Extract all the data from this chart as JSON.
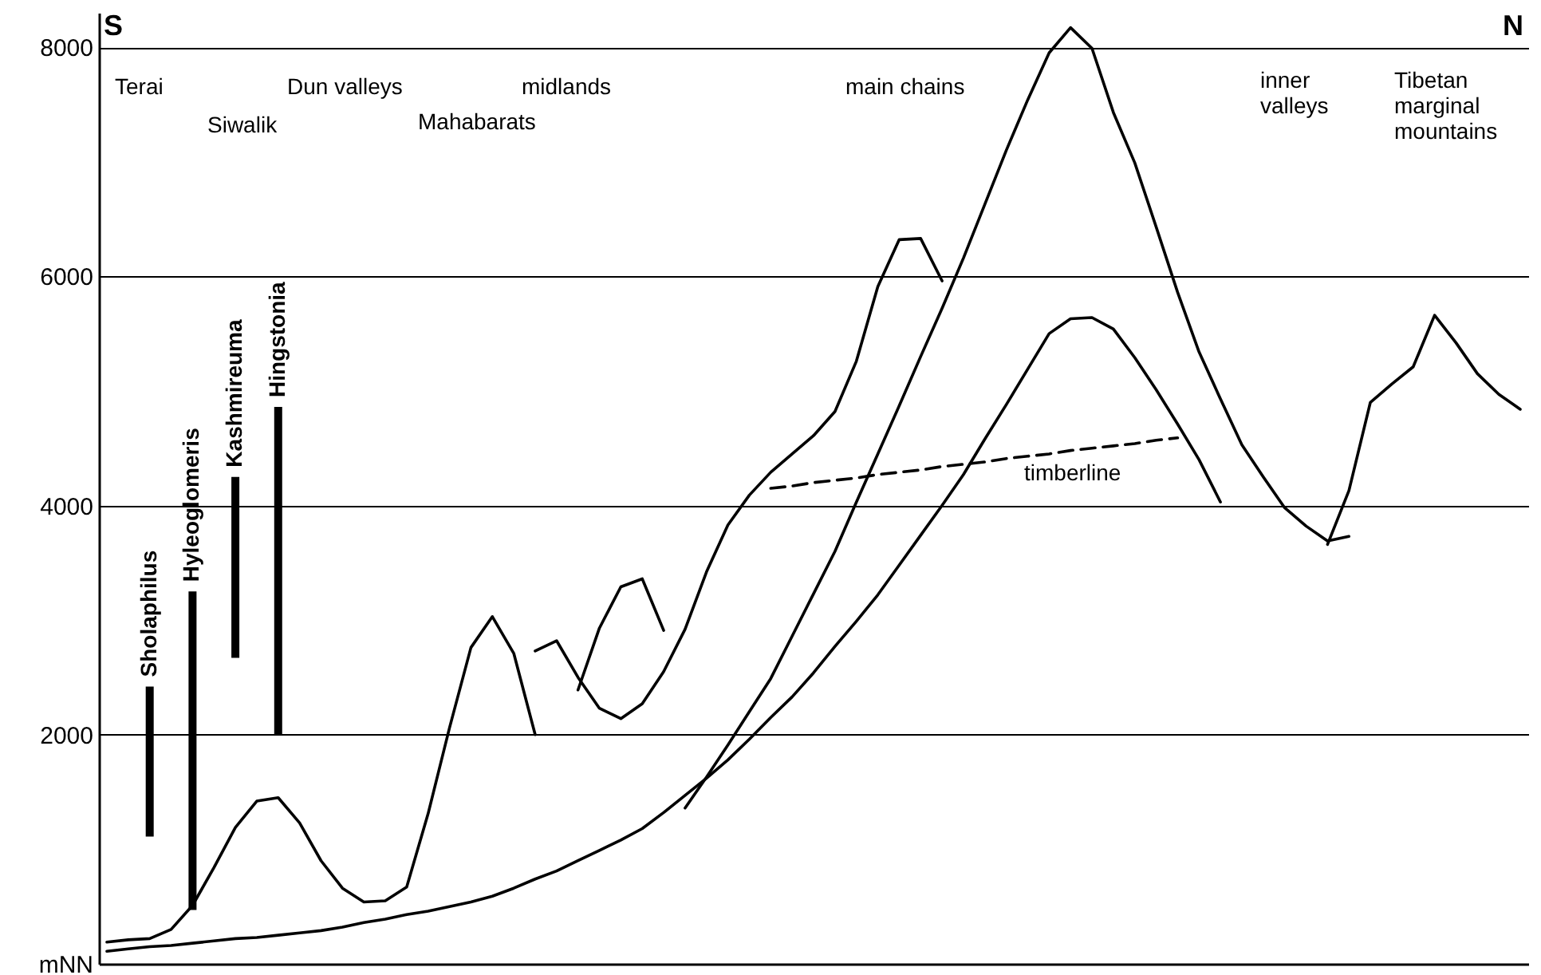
{
  "chart_data": {
    "type": "line",
    "categories": [
      null,
      null,
      null,
      null,
      null,
      null,
      null,
      null,
      null,
      null,
      null,
      null,
      null,
      null,
      null,
      null,
      null,
      null,
      null,
      null,
      null,
      null,
      null,
      null,
      null,
      null,
      null,
      null,
      null,
      null,
      null,
      null,
      null,
      null,
      null,
      null,
      null,
      null,
      null,
      null,
      null,
      null,
      null,
      null,
      null,
      null,
      null,
      null,
      null,
      null,
      null,
      null,
      null,
      null,
      null,
      null,
      null,
      null,
      null,
      null,
      null,
      null,
      null,
      null,
      null,
      null,
      null
    ],
    "ylim": [
      0,
      8300
    ],
    "yticks": [
      {
        "value": 0,
        "label": "mNN"
      },
      2000,
      4000,
      6000,
      8000
    ],
    "grid": "y",
    "tick_labels": "y",
    "series": [
      {
        "color": "#000000",
        "values": [
          110,
          130,
          150,
          160,
          180,
          200,
          220,
          230,
          250,
          270,
          290,
          320,
          360,
          390,
          430,
          460,
          500,
          540,
          590,
          660,
          740,
          810,
          900,
          990,
          1080,
          1180,
          1320,
          1470,
          1620,
          1780,
          1960,
          2150,
          2330,
          2540,
          2770,
          2990,
          3220,
          3480,
          3740,
          4000,
          4270,
          4580,
          4880,
          5190,
          5500,
          5630,
          5640,
          5540,
          5290,
          5010,
          4710,
          4400,
          4030,
          null,
          null,
          null,
          null,
          null,
          null,
          null,
          null,
          null,
          null,
          null,
          null,
          null,
          null
        ]
      },
      {
        "color": "#000000",
        "values": [
          190,
          210,
          220,
          300,
          510,
          840,
          1190,
          1420,
          1450,
          1230,
          900,
          660,
          540,
          550,
          670,
          1310,
          2060,
          2760,
          3030,
          2710,
          2000,
          null,
          null,
          null,
          null,
          null,
          null,
          null,
          null,
          null,
          null,
          null,
          null,
          null,
          null,
          null,
          null,
          null,
          null,
          null,
          null,
          null,
          null,
          null,
          null,
          null,
          null,
          null,
          null,
          null,
          null,
          null,
          null,
          null,
          null,
          null,
          null,
          null,
          null,
          null,
          null,
          null,
          null,
          null,
          null,
          null,
          null
        ]
      },
      {
        "color": "#000000",
        "values": [
          null,
          null,
          null,
          null,
          null,
          null,
          null,
          null,
          null,
          null,
          null,
          null,
          null,
          null,
          null,
          null,
          null,
          null,
          null,
          null,
          2730,
          2820,
          2500,
          2230,
          2140,
          2270,
          2550,
          2920,
          3420,
          3830,
          4090,
          4290,
          4450,
          4610,
          4820,
          5260,
          5910,
          6320,
          6330,
          5960,
          null,
          null,
          null,
          null,
          null,
          null,
          null,
          null,
          null,
          null,
          null,
          null,
          null,
          null,
          null,
          null,
          null,
          null,
          null,
          null,
          null,
          null,
          null,
          null,
          null,
          null,
          null
        ]
      },
      {
        "color": "#000000",
        "values": [
          null,
          null,
          null,
          null,
          null,
          null,
          null,
          null,
          null,
          null,
          null,
          null,
          null,
          null,
          null,
          null,
          null,
          null,
          null,
          null,
          null,
          null,
          2390,
          2930,
          3290,
          3360,
          2910,
          null,
          null,
          null,
          null,
          null,
          null,
          null,
          null,
          null,
          null,
          null,
          null,
          null,
          null,
          null,
          null,
          null,
          null,
          null,
          null,
          null,
          null,
          null,
          null,
          null,
          null,
          null,
          null,
          null,
          null,
          null,
          null,
          null,
          null,
          null,
          null,
          null,
          null,
          null,
          null
        ]
      },
      {
        "color": "#000000",
        "values": [
          null,
          null,
          null,
          null,
          null,
          null,
          null,
          null,
          null,
          null,
          null,
          null,
          null,
          null,
          null,
          null,
          null,
          null,
          null,
          null,
          null,
          null,
          null,
          null,
          null,
          null,
          null,
          1360,
          1630,
          1910,
          2200,
          2490,
          2860,
          3230,
          3600,
          4030,
          4450,
          4870,
          5300,
          5720,
          6160,
          6630,
          7100,
          7540,
          7950,
          8170,
          7990,
          7430,
          6990,
          6430,
          5860,
          5340,
          4930,
          4530,
          4250,
          3980,
          3820,
          3690,
          3730,
          null,
          null,
          null,
          null,
          null,
          null,
          null,
          null
        ]
      },
      {
        "color": "#000000",
        "values": [
          null,
          null,
          null,
          null,
          null,
          null,
          null,
          null,
          null,
          null,
          null,
          null,
          null,
          null,
          null,
          null,
          null,
          null,
          null,
          null,
          null,
          null,
          null,
          null,
          null,
          null,
          null,
          null,
          null,
          null,
          null,
          null,
          null,
          null,
          null,
          null,
          null,
          null,
          null,
          null,
          null,
          null,
          null,
          null,
          null,
          null,
          null,
          null,
          null,
          null,
          null,
          null,
          null,
          null,
          null,
          null,
          null,
          3660,
          4130,
          4900,
          5060,
          5210,
          5660,
          5420,
          5150,
          4970,
          4840
        ]
      },
      {
        "color": "#000000",
        "line_style": "dashed",
        "values": [
          null,
          null,
          null,
          null,
          null,
          null,
          null,
          null,
          null,
          null,
          null,
          null,
          null,
          null,
          null,
          null,
          null,
          null,
          null,
          null,
          null,
          null,
          null,
          null,
          null,
          null,
          null,
          null,
          null,
          null,
          null,
          4150,
          4170,
          4200,
          4220,
          4240,
          4270,
          4290,
          4310,
          4340,
          4360,
          4380,
          4410,
          4430,
          4450,
          4480,
          4500,
          4520,
          4540,
          4570,
          4590,
          null,
          null,
          null,
          null,
          null,
          null,
          null,
          null,
          null,
          null,
          null,
          null,
          null,
          null,
          null,
          null
        ]
      },
      {
        "type": "bar",
        "name": "Sholaphilus",
        "color": "#000000",
        "values": [
          null,
          null,
          1310,
          null,
          null,
          null,
          null,
          null,
          null,
          null,
          null,
          null,
          null,
          null,
          null,
          null,
          null,
          null,
          null,
          null,
          null,
          null,
          null,
          null,
          null,
          null,
          null,
          null,
          null,
          null,
          null,
          null,
          null,
          null,
          null,
          null,
          null,
          null,
          null,
          null,
          null,
          null,
          null,
          null,
          null,
          null,
          null,
          null,
          null,
          null,
          null,
          null,
          null,
          null,
          null,
          null,
          null,
          null,
          null,
          null,
          null,
          null,
          null,
          null,
          null,
          null,
          null
        ],
        "base": [
          null,
          null,
          1110,
          null,
          null,
          null,
          null,
          null,
          null,
          null,
          null,
          null,
          null,
          null,
          null,
          null,
          null,
          null,
          null,
          null,
          null,
          null,
          null,
          null,
          null,
          null,
          null,
          null,
          null,
          null,
          null,
          null,
          null,
          null,
          null,
          null,
          null,
          null,
          null,
          null,
          null,
          null,
          null,
          null,
          null,
          null,
          null,
          null,
          null,
          null,
          null,
          null,
          null,
          null,
          null,
          null,
          null,
          null,
          null,
          null,
          null,
          null,
          null,
          null,
          null,
          null,
          null
        ]
      },
      {
        "type": "bar",
        "name": "Hyleoglomeris",
        "color": "#000000",
        "values": [
          null,
          null,
          null,
          null,
          2780,
          null,
          null,
          null,
          null,
          null,
          null,
          null,
          null,
          null,
          null,
          null,
          null,
          null,
          null,
          null,
          null,
          null,
          null,
          null,
          null,
          null,
          null,
          null,
          null,
          null,
          null,
          null,
          null,
          null,
          null,
          null,
          null,
          null,
          null,
          null,
          null,
          null,
          null,
          null,
          null,
          null,
          null,
          null,
          null,
          null,
          null,
          null,
          null,
          null,
          null,
          null,
          null,
          null,
          null,
          null,
          null,
          null,
          null,
          null,
          null,
          null,
          null
        ],
        "base": [
          null,
          null,
          null,
          null,
          470,
          null,
          null,
          null,
          null,
          null,
          null,
          null,
          null,
          null,
          null,
          null,
          null,
          null,
          null,
          null,
          null,
          null,
          null,
          null,
          null,
          null,
          null,
          null,
          null,
          null,
          null,
          null,
          null,
          null,
          null,
          null,
          null,
          null,
          null,
          null,
          null,
          null,
          null,
          null,
          null,
          null,
          null,
          null,
          null,
          null,
          null,
          null,
          null,
          null,
          null,
          null,
          null,
          null,
          null,
          null,
          null,
          null,
          null,
          null,
          null,
          null,
          null
        ]
      },
      {
        "type": "bar",
        "name": "Kashmireuma",
        "color": "#000000",
        "values": [
          null,
          null,
          null,
          null,
          null,
          null,
          1580,
          null,
          null,
          null,
          null,
          null,
          null,
          null,
          null,
          null,
          null,
          null,
          null,
          null,
          null,
          null,
          null,
          null,
          null,
          null,
          null,
          null,
          null,
          null,
          null,
          null,
          null,
          null,
          null,
          null,
          null,
          null,
          null,
          null,
          null,
          null,
          null,
          null,
          null,
          null,
          null,
          null,
          null,
          null,
          null,
          null,
          null,
          null,
          null,
          null,
          null,
          null,
          null,
          null,
          null,
          null,
          null,
          null,
          null,
          null,
          null
        ],
        "base": [
          null,
          null,
          null,
          null,
          null,
          null,
          2670,
          null,
          null,
          null,
          null,
          null,
          null,
          null,
          null,
          null,
          null,
          null,
          null,
          null,
          null,
          null,
          null,
          null,
          null,
          null,
          null,
          null,
          null,
          null,
          null,
          null,
          null,
          null,
          null,
          null,
          null,
          null,
          null,
          null,
          null,
          null,
          null,
          null,
          null,
          null,
          null,
          null,
          null,
          null,
          null,
          null,
          null,
          null,
          null,
          null,
          null,
          null,
          null,
          null,
          null,
          null,
          null,
          null,
          null,
          null,
          null
        ]
      },
      {
        "type": "bar",
        "name": "Hingstonia",
        "color": "#000000",
        "values": [
          null,
          null,
          null,
          null,
          null,
          null,
          null,
          null,
          2860,
          null,
          null,
          null,
          null,
          null,
          null,
          null,
          null,
          null,
          null,
          null,
          null,
          null,
          null,
          null,
          null,
          null,
          null,
          null,
          null,
          null,
          null,
          null,
          null,
          null,
          null,
          null,
          null,
          null,
          null,
          null,
          null,
          null,
          null,
          null,
          null,
          null,
          null,
          null,
          null,
          null,
          null,
          null,
          null,
          null,
          null,
          null,
          null,
          null,
          null,
          null,
          null,
          null,
          null,
          null,
          null,
          null,
          null
        ],
        "base": [
          null,
          null,
          null,
          null,
          null,
          null,
          null,
          null,
          2000,
          null,
          null,
          null,
          null,
          null,
          null,
          null,
          null,
          null,
          null,
          null,
          null,
          null,
          null,
          null,
          null,
          null,
          null,
          null,
          null,
          null,
          null,
          null,
          null,
          null,
          null,
          null,
          null,
          null,
          null,
          null,
          null,
          null,
          null,
          null,
          null,
          null,
          null,
          null,
          null,
          null,
          null,
          null,
          null,
          null,
          null,
          null,
          null,
          null,
          null,
          null,
          null,
          null,
          null,
          null,
          null,
          null,
          null
        ]
      }
    ],
    "annotations": [
      "S",
      "N",
      "Terai",
      "Siwalik",
      "Dun valleys",
      "Mahabarats",
      "midlands",
      "main chains",
      "inner\nvalleys",
      "Tibetan\nmarginal\nmountains",
      "timberline"
    ]
  }
}
